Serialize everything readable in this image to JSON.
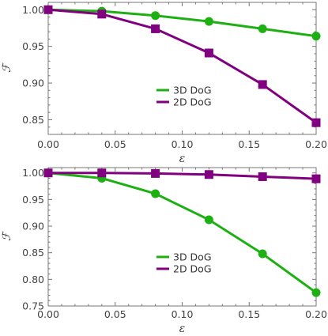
{
  "colors": {
    "series_3d": "#1db012",
    "series_2d": "#800080",
    "axis": "#777777",
    "text": "#444444"
  },
  "chart_data": [
    {
      "type": "line",
      "xlabel": "ε",
      "ylabel": "ℱ",
      "xlim": [
        0.0,
        0.2
      ],
      "ylim": [
        0.83,
        1.01
      ],
      "xticks": [
        "0.00",
        "0.05",
        "0.10",
        "0.15",
        "0.20"
      ],
      "xtick_values": [
        0.0,
        0.05,
        0.1,
        0.15,
        0.2
      ],
      "yticks": [
        "0.85",
        "0.90",
        "0.95",
        "1.00"
      ],
      "ytick_values": [
        0.85,
        0.9,
        0.95,
        1.0
      ],
      "grid": false,
      "legend": "center",
      "x": [
        0.0,
        0.04,
        0.08,
        0.12,
        0.16,
        0.2
      ],
      "series": [
        {
          "name": "3D DoG",
          "marker": "circle",
          "color": "#1db012",
          "values": [
            1.0,
            0.998,
            0.992,
            0.984,
            0.974,
            0.964
          ]
        },
        {
          "name": "2D DoG",
          "marker": "square",
          "color": "#800080",
          "values": [
            1.0,
            0.994,
            0.974,
            0.941,
            0.898,
            0.846
          ]
        }
      ]
    },
    {
      "type": "line",
      "xlabel": "ε",
      "ylabel": "ℱ",
      "xlim": [
        0.0,
        0.2
      ],
      "ylim": [
        0.75,
        1.01
      ],
      "xticks": [
        "0.00",
        "0.05",
        "0.10",
        "0.15",
        "0.20"
      ],
      "xtick_values": [
        0.0,
        0.05,
        0.1,
        0.15,
        0.2
      ],
      "yticks": [
        "0.75",
        "0.80",
        "0.85",
        "0.90",
        "0.95",
        "1.00"
      ],
      "ytick_values": [
        0.75,
        0.8,
        0.85,
        0.9,
        0.95,
        1.0
      ],
      "grid": false,
      "legend": "center",
      "x": [
        0.0,
        0.04,
        0.08,
        0.12,
        0.16,
        0.2
      ],
      "series": [
        {
          "name": "3D DoG",
          "marker": "circle",
          "color": "#1db012",
          "values": [
            1.0,
            0.99,
            0.961,
            0.912,
            0.848,
            0.775
          ]
        },
        {
          "name": "2D DoG",
          "marker": "square",
          "color": "#800080",
          "values": [
            1.0,
            1.0,
            0.999,
            0.997,
            0.993,
            0.989
          ]
        }
      ]
    }
  ]
}
